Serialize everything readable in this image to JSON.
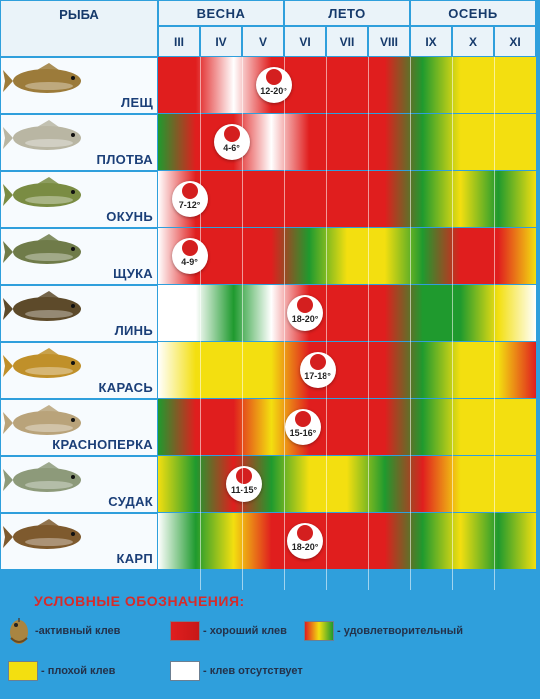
{
  "header": {
    "fish_label": "РЫБА",
    "seasons": [
      {
        "label": "ВЕСНА",
        "months": [
          "III",
          "IV",
          "V"
        ]
      },
      {
        "label": "ЛЕТО",
        "months": [
          "VI",
          "VII",
          "VIII"
        ]
      },
      {
        "label": "ОСЕНЬ",
        "months": [
          "IX",
          "X",
          "XI"
        ]
      }
    ]
  },
  "colors": {
    "good": "#e01e1e",
    "satisfactory": "#1f9a2e",
    "poor": "#f3df10",
    "none": "#ffffff",
    "marker": "#d41f1f"
  },
  "fish": [
    {
      "name": "ЛЕЩ",
      "fill": "#9c7b3a",
      "marker": {
        "temp": "12-20°",
        "month_index": 2.25
      },
      "stops": [
        "good",
        "good",
        "none",
        "good",
        "good",
        "good",
        "good",
        "satisfactory",
        "poor",
        "poor",
        "poor"
      ]
    },
    {
      "name": "ПЛОТВА",
      "fill": "#b9b6a3",
      "marker": {
        "temp": "4-6°",
        "month_index": 1.25
      },
      "stops": [
        "satisfactory",
        "good",
        "good",
        "none",
        "good",
        "good",
        "good",
        "satisfactory",
        "poor",
        "poor",
        "poor"
      ]
    },
    {
      "name": "ОКУНЬ",
      "fill": "#7a8c43",
      "marker": {
        "temp": "7-12°",
        "month_index": 0.25
      },
      "stops": [
        "none",
        "good",
        "good",
        "good",
        "good",
        "good",
        "good",
        "satisfactory",
        "poor",
        "satisfactory",
        "poor"
      ]
    },
    {
      "name": "ЩУКА",
      "fill": "#6f7b49",
      "marker": {
        "temp": "4-9°",
        "month_index": 0.25
      },
      "stops": [
        "none",
        "good",
        "good",
        "good",
        "satisfactory",
        "poor",
        "poor",
        "satisfactory",
        "good",
        "good",
        "poor"
      ]
    },
    {
      "name": "ЛИНЬ",
      "fill": "#5d4a2a",
      "marker": {
        "temp": "18-20°",
        "month_index": 3.0
      },
      "stops": [
        "none",
        "none",
        "satisfactory",
        "none",
        "good",
        "good",
        "good",
        "satisfactory",
        "satisfactory",
        "poor",
        "none"
      ]
    },
    {
      "name": "КАРАСЬ",
      "fill": "#c0902a",
      "marker": {
        "temp": "17-18°",
        "month_index": 3.3
      },
      "stops": [
        "none",
        "poor",
        "poor",
        "poor",
        "good",
        "good",
        "good",
        "satisfactory",
        "poor",
        "poor",
        "good"
      ]
    },
    {
      "name": "КРАСНОПЕРКА",
      "fill": "#b9a37a",
      "marker": {
        "temp": "15-16°",
        "month_index": 2.95
      },
      "stops": [
        "satisfactory",
        "good",
        "good",
        "poor",
        "good",
        "good",
        "good",
        "satisfactory",
        "poor",
        "poor",
        "poor"
      ]
    },
    {
      "name": "СУДАК",
      "fill": "#8d9a7a",
      "marker": {
        "temp": "11-15°",
        "month_index": 1.55
      },
      "stops": [
        "poor",
        "satisfactory",
        "good",
        "satisfactory",
        "poor",
        "poor",
        "satisfactory",
        "good",
        "poor",
        "poor",
        "poor"
      ]
    },
    {
      "name": "КАРП",
      "fill": "#7e5a2e",
      "marker": {
        "temp": "18-20°",
        "month_index": 3.0
      },
      "stops": [
        "none",
        "satisfactory",
        "poor",
        "good",
        "good",
        "good",
        "good",
        "satisfactory",
        "poor",
        "satisfactory",
        "poor"
      ]
    }
  ],
  "legend": {
    "title": "УСЛОВНЫЕ ОБОЗНАЧЕНИЯ:",
    "active_bite": "-активный клев",
    "good_bite": "- хороший клев",
    "satisfactory": "- удовлетворительный",
    "poor_bite": "- плохой клев",
    "no_bite": "- клев отсутствует"
  }
}
